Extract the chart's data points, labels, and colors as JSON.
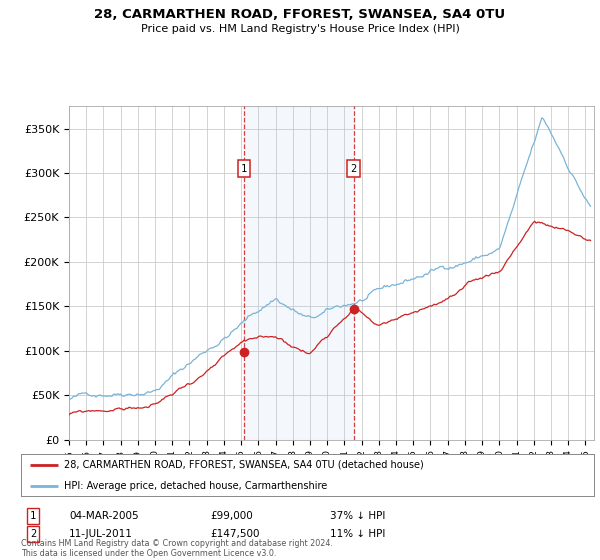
{
  "title1": "28, CARMARTHEN ROAD, FFOREST, SWANSEA, SA4 0TU",
  "title2": "Price paid vs. HM Land Registry's House Price Index (HPI)",
  "legend_line1": "28, CARMARTHEN ROAD, FFOREST, SWANSEA, SA4 0TU (detached house)",
  "legend_line2": "HPI: Average price, detached house, Carmarthenshire",
  "transaction1_label": "1",
  "transaction1_date": "04-MAR-2005",
  "transaction1_price": "£99,000",
  "transaction1_pct": "37% ↓ HPI",
  "transaction2_label": "2",
  "transaction2_date": "11-JUL-2011",
  "transaction2_price": "£147,500",
  "transaction2_pct": "11% ↓ HPI",
  "footer": "Contains HM Land Registry data © Crown copyright and database right 2024.\nThis data is licensed under the Open Government Licence v3.0.",
  "hpi_color": "#7ab4d8",
  "price_color": "#cc2222",
  "vline_color": "#cc2222",
  "bg_color": "#ffffff",
  "plot_bg_color": "#ffffff",
  "grid_color": "#cccccc",
  "transaction1_x_year": 2005.17,
  "transaction2_x_year": 2011.53,
  "t1_price_y": 99000,
  "t2_price_y": 147500,
  "ylim": [
    0,
    375000
  ],
  "yticks": [
    0,
    50000,
    100000,
    150000,
    200000,
    250000,
    300000,
    350000
  ],
  "xmin": 1995.0,
  "xmax": 2025.5,
  "seed": 12
}
